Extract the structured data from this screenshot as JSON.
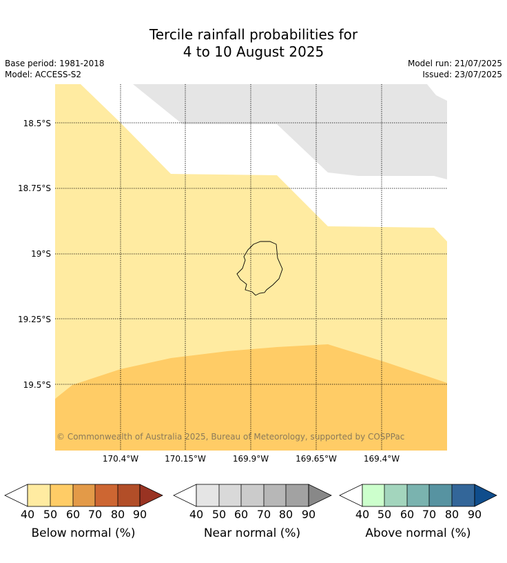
{
  "title_line1": "Tercile rainfall probabilities for",
  "title_line2": "4 to 10 August 2025",
  "base_period": "Base period: 1981-2018",
  "model": "Model: ACCESS-S2",
  "model_run": "Model run: 21/07/2025",
  "issued": "Issued: 23/07/2025",
  "copyright": "© Commonwealth of Australia 2025, Bureau of Meteorology, supported by COSPPac",
  "map": {
    "lat_labels": [
      "18.5°S",
      "18.75°S",
      "19°S",
      "19.25°S",
      "19.5°S"
    ],
    "lon_labels": [
      "170.4°W",
      "170.15°W",
      "169.9°W",
      "169.65°W",
      "169.4°W"
    ]
  },
  "colors": {
    "below_40": "#ffeba1",
    "below_50": "#ffcc66",
    "below_60": "#e39a48",
    "below_70": "#cd6632",
    "below_80": "#b24e28",
    "below_90": "#993322",
    "near_40": "#e5e5e5",
    "near_50": "#d9d9d9",
    "near_60": "#cbcbcb",
    "near_70": "#b7b7b7",
    "near_80": "#a2a2a2",
    "near_90": "#888888",
    "above_40": "#ccffcc",
    "above_50": "#a3d5bd",
    "above_60": "#7ab3af",
    "above_70": "#5793a1",
    "above_80": "#336699",
    "above_90": "#0f4d8c"
  },
  "colorbars": [
    {
      "label": "Below normal (%)",
      "ticks": [
        "40",
        "50",
        "60",
        "70",
        "80",
        "90"
      ]
    },
    {
      "label": "Near normal (%)",
      "ticks": [
        "40",
        "50",
        "60",
        "70",
        "80",
        "90"
      ]
    },
    {
      "label": "Above normal (%)",
      "ticks": [
        "40",
        "50",
        "60",
        "70",
        "80",
        "90"
      ]
    }
  ]
}
